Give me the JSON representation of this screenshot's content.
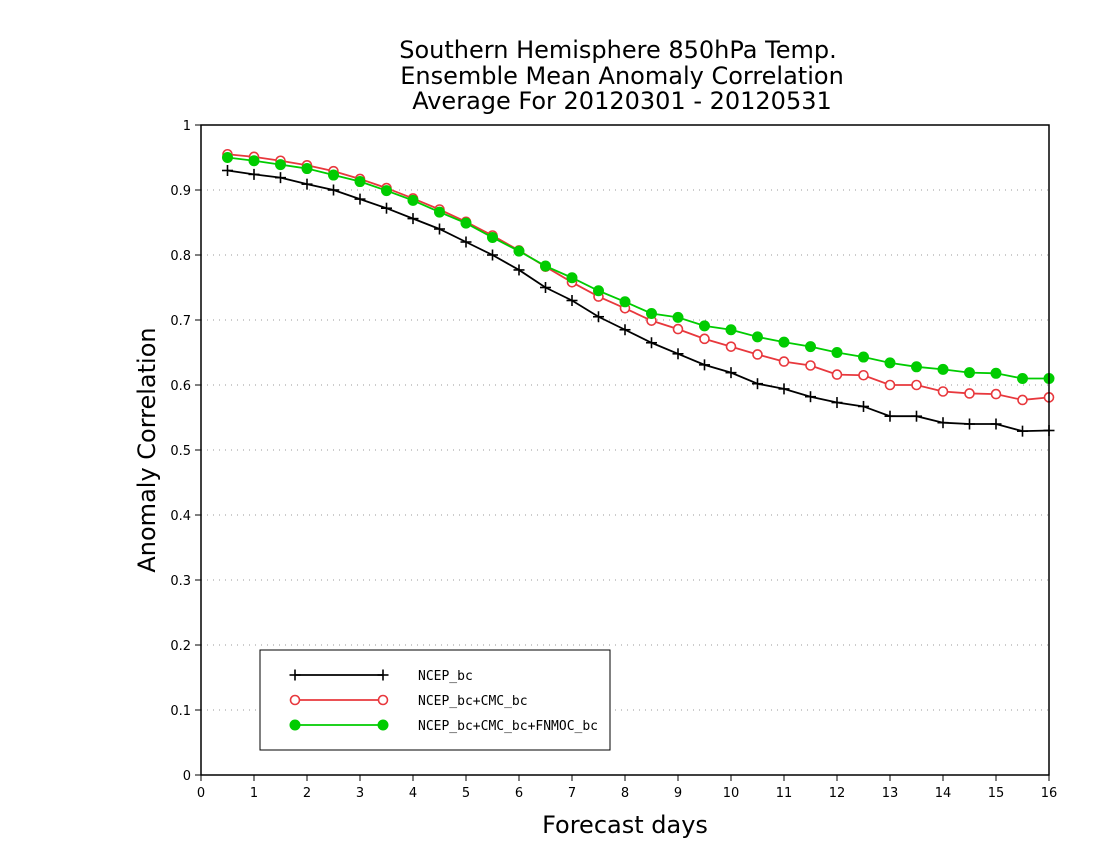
{
  "chart_data": {
    "type": "line",
    "title_lines": [
      "Southern Hemisphere 850hPa Temp.",
      "Ensemble Mean Anomaly Correlation",
      "Average For 20120301 - 20120531"
    ],
    "xlabel": "Forecast days",
    "ylabel": "Anomaly Correlation",
    "xlim": [
      0,
      16
    ],
    "ylim": [
      0,
      1
    ],
    "xticks": [
      0,
      1,
      2,
      3,
      4,
      5,
      6,
      7,
      8,
      9,
      10,
      11,
      12,
      13,
      14,
      15,
      16
    ],
    "yticks": [
      0,
      0.1,
      0.2,
      0.3,
      0.4,
      0.5,
      0.6,
      0.7,
      0.8,
      0.9,
      1
    ],
    "grid": true,
    "legend_position": "bottom-left",
    "x": [
      0.5,
      1,
      1.5,
      2,
      2.5,
      3,
      3.5,
      4,
      4.5,
      5,
      5.5,
      6,
      6.5,
      7,
      7.5,
      8,
      8.5,
      9,
      9.5,
      10,
      10.5,
      11,
      11.5,
      12,
      12.5,
      13,
      13.5,
      14,
      14.5,
      15,
      15.5,
      16
    ],
    "series": [
      {
        "name": "NCEP_bc",
        "color": "#000000",
        "marker": "plus",
        "values": [
          0.93,
          0.924,
          0.919,
          0.909,
          0.9,
          0.886,
          0.872,
          0.856,
          0.84,
          0.82,
          0.8,
          0.777,
          0.75,
          0.73,
          0.705,
          0.685,
          0.665,
          0.648,
          0.631,
          0.619,
          0.602,
          0.594,
          0.582,
          0.573,
          0.567,
          0.552,
          0.552,
          0.542,
          0.54,
          0.54,
          0.529,
          0.53
        ]
      },
      {
        "name": "NCEP_bc+CMC_bc",
        "color": "#e8383d",
        "marker": "open-circle",
        "values": [
          0.955,
          0.951,
          0.945,
          0.938,
          0.929,
          0.917,
          0.903,
          0.887,
          0.87,
          0.851,
          0.83,
          0.807,
          0.782,
          0.758,
          0.736,
          0.718,
          0.699,
          0.686,
          0.671,
          0.659,
          0.647,
          0.636,
          0.63,
          0.616,
          0.615,
          0.6,
          0.6,
          0.59,
          0.587,
          0.586,
          0.577,
          0.581
        ]
      },
      {
        "name": "NCEP_bc+CMC_bc+FNMOC_bc",
        "color": "#00cc00",
        "marker": "filled-circle",
        "values": [
          0.95,
          0.945,
          0.939,
          0.933,
          0.923,
          0.913,
          0.899,
          0.884,
          0.866,
          0.849,
          0.827,
          0.806,
          0.783,
          0.765,
          0.745,
          0.728,
          0.71,
          0.704,
          0.691,
          0.685,
          0.674,
          0.666,
          0.659,
          0.65,
          0.643,
          0.634,
          0.628,
          0.624,
          0.619,
          0.618,
          0.61,
          0.61
        ]
      }
    ]
  }
}
